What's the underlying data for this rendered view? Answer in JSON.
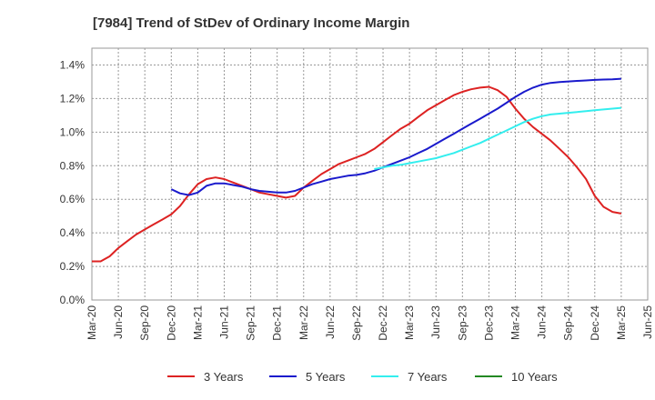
{
  "chart_data": {
    "type": "line",
    "title": "[7984]  Trend of StDev of Ordinary Income Margin",
    "xlabel": "",
    "ylabel": "",
    "ylim": [
      0,
      1.5
    ],
    "y_ticks": [
      "0.0%",
      "0.2%",
      "0.4%",
      "0.6%",
      "0.8%",
      "1.0%",
      "1.2%",
      "1.4%"
    ],
    "y_tick_values": [
      0,
      0.2,
      0.4,
      0.6,
      0.8,
      1.0,
      1.2,
      1.4
    ],
    "x_ticks": [
      "Mar-20",
      "Jun-20",
      "Sep-20",
      "Dec-20",
      "Mar-21",
      "Jun-21",
      "Sep-21",
      "Dec-21",
      "Mar-22",
      "Jun-22",
      "Sep-22",
      "Dec-22",
      "Mar-23",
      "Jun-23",
      "Sep-23",
      "Dec-23",
      "Mar-24",
      "Jun-24",
      "Sep-24",
      "Dec-24",
      "Mar-25",
      "Jun-25"
    ],
    "grid": true,
    "legend_position": "bottom",
    "series": [
      {
        "name": "3 Years",
        "color": "#dd2222",
        "points": [
          [
            0,
            0.23
          ],
          [
            0.33,
            0.23
          ],
          [
            0.67,
            0.26
          ],
          [
            1,
            0.31
          ],
          [
            1.33,
            0.35
          ],
          [
            1.67,
            0.39
          ],
          [
            2,
            0.42
          ],
          [
            2.33,
            0.45
          ],
          [
            2.67,
            0.48
          ],
          [
            3,
            0.51
          ],
          [
            3.33,
            0.56
          ],
          [
            3.67,
            0.63
          ],
          [
            4,
            0.69
          ],
          [
            4.33,
            0.72
          ],
          [
            4.67,
            0.73
          ],
          [
            5,
            0.72
          ],
          [
            5.33,
            0.7
          ],
          [
            5.67,
            0.68
          ],
          [
            6,
            0.66
          ],
          [
            6.33,
            0.64
          ],
          [
            6.67,
            0.63
          ],
          [
            7,
            0.62
          ],
          [
            7.33,
            0.61
          ],
          [
            7.67,
            0.62
          ],
          [
            8,
            0.67
          ],
          [
            8.33,
            0.71
          ],
          [
            8.67,
            0.75
          ],
          [
            9,
            0.78
          ],
          [
            9.33,
            0.81
          ],
          [
            9.67,
            0.83
          ],
          [
            10,
            0.85
          ],
          [
            10.33,
            0.87
          ],
          [
            10.67,
            0.9
          ],
          [
            11,
            0.94
          ],
          [
            11.33,
            0.98
          ],
          [
            11.67,
            1.02
          ],
          [
            12,
            1.05
          ],
          [
            12.33,
            1.09
          ],
          [
            12.67,
            1.13
          ],
          [
            13,
            1.16
          ],
          [
            13.33,
            1.19
          ],
          [
            13.67,
            1.22
          ],
          [
            14,
            1.24
          ],
          [
            14.33,
            1.255
          ],
          [
            14.67,
            1.265
          ],
          [
            15,
            1.27
          ],
          [
            15.33,
            1.25
          ],
          [
            15.67,
            1.21
          ],
          [
            16,
            1.14
          ],
          [
            16.33,
            1.08
          ],
          [
            16.67,
            1.03
          ],
          [
            17,
            0.99
          ],
          [
            17.33,
            0.95
          ],
          [
            17.67,
            0.9
          ],
          [
            18,
            0.85
          ],
          [
            18.33,
            0.79
          ],
          [
            18.67,
            0.72
          ],
          [
            19,
            0.62
          ],
          [
            19.33,
            0.555
          ],
          [
            19.67,
            0.525
          ],
          [
            20,
            0.515
          ]
        ]
      },
      {
        "name": "5 Years",
        "color": "#1a1acc",
        "points": [
          [
            3,
            0.66
          ],
          [
            3.33,
            0.635
          ],
          [
            3.67,
            0.625
          ],
          [
            4,
            0.64
          ],
          [
            4.33,
            0.68
          ],
          [
            4.67,
            0.695
          ],
          [
            5,
            0.695
          ],
          [
            5.33,
            0.685
          ],
          [
            5.67,
            0.675
          ],
          [
            6,
            0.66
          ],
          [
            6.33,
            0.65
          ],
          [
            6.67,
            0.645
          ],
          [
            7,
            0.64
          ],
          [
            7.33,
            0.64
          ],
          [
            7.67,
            0.65
          ],
          [
            8,
            0.67
          ],
          [
            8.33,
            0.69
          ],
          [
            8.67,
            0.705
          ],
          [
            9,
            0.72
          ],
          [
            9.33,
            0.73
          ],
          [
            9.67,
            0.74
          ],
          [
            10,
            0.745
          ],
          [
            10.33,
            0.755
          ],
          [
            10.67,
            0.77
          ],
          [
            11,
            0.79
          ],
          [
            11.33,
            0.81
          ],
          [
            11.67,
            0.83
          ],
          [
            12,
            0.85
          ],
          [
            12.33,
            0.875
          ],
          [
            12.67,
            0.9
          ],
          [
            13,
            0.93
          ],
          [
            13.33,
            0.96
          ],
          [
            13.67,
            0.99
          ],
          [
            14,
            1.02
          ],
          [
            14.33,
            1.05
          ],
          [
            14.67,
            1.08
          ],
          [
            15,
            1.11
          ],
          [
            15.33,
            1.14
          ],
          [
            15.67,
            1.175
          ],
          [
            16,
            1.21
          ],
          [
            16.33,
            1.24
          ],
          [
            16.67,
            1.265
          ],
          [
            17,
            1.283
          ],
          [
            17.33,
            1.293
          ],
          [
            17.67,
            1.298
          ],
          [
            18,
            1.302
          ],
          [
            18.33,
            1.305
          ],
          [
            18.67,
            1.308
          ],
          [
            19,
            1.311
          ],
          [
            19.33,
            1.313
          ],
          [
            19.67,
            1.315
          ],
          [
            20,
            1.318
          ]
        ]
      },
      {
        "name": "7 Years",
        "color": "#33eeee",
        "points": [
          [
            10.67,
            0.78
          ],
          [
            11,
            0.79
          ],
          [
            11.33,
            0.8
          ],
          [
            11.67,
            0.805
          ],
          [
            12,
            0.815
          ],
          [
            12.33,
            0.825
          ],
          [
            12.67,
            0.835
          ],
          [
            13,
            0.845
          ],
          [
            13.33,
            0.86
          ],
          [
            13.67,
            0.875
          ],
          [
            14,
            0.895
          ],
          [
            14.33,
            0.915
          ],
          [
            14.67,
            0.935
          ],
          [
            15,
            0.96
          ],
          [
            15.33,
            0.985
          ],
          [
            15.67,
            1.01
          ],
          [
            16,
            1.035
          ],
          [
            16.33,
            1.06
          ],
          [
            16.67,
            1.08
          ],
          [
            17,
            1.095
          ],
          [
            17.33,
            1.105
          ],
          [
            17.67,
            1.11
          ],
          [
            18,
            1.115
          ],
          [
            18.33,
            1.12
          ],
          [
            18.67,
            1.125
          ],
          [
            19,
            1.13
          ],
          [
            19.33,
            1.135
          ],
          [
            19.67,
            1.14
          ],
          [
            20,
            1.145
          ]
        ]
      },
      {
        "name": "10 Years",
        "color": "#228822",
        "points": []
      }
    ]
  }
}
